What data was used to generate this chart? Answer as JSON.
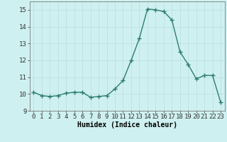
{
  "x": [
    0,
    1,
    2,
    3,
    4,
    5,
    6,
    7,
    8,
    9,
    10,
    11,
    12,
    13,
    14,
    15,
    16,
    17,
    18,
    19,
    20,
    21,
    22,
    23
  ],
  "y": [
    10.1,
    9.9,
    9.85,
    9.9,
    10.05,
    10.1,
    10.1,
    9.8,
    9.85,
    9.9,
    10.3,
    10.8,
    12.0,
    13.3,
    15.05,
    15.0,
    14.9,
    14.4,
    12.5,
    11.75,
    10.9,
    11.1,
    11.1,
    9.5
  ],
  "line_color": "#2e7d6e",
  "bg_color": "#cff0f0",
  "grid_color": "#b8dede",
  "xlabel": "Humidex (Indice chaleur)",
  "ylim": [
    9,
    15.5
  ],
  "xlim": [
    -0.5,
    23.5
  ],
  "yticks": [
    9,
    10,
    11,
    12,
    13,
    14,
    15
  ],
  "xticks": [
    0,
    1,
    2,
    3,
    4,
    5,
    6,
    7,
    8,
    9,
    10,
    11,
    12,
    13,
    14,
    15,
    16,
    17,
    18,
    19,
    20,
    21,
    22,
    23
  ],
  "xlabel_fontsize": 7,
  "tick_fontsize": 6.5,
  "marker_size": 4,
  "line_width": 1.0
}
